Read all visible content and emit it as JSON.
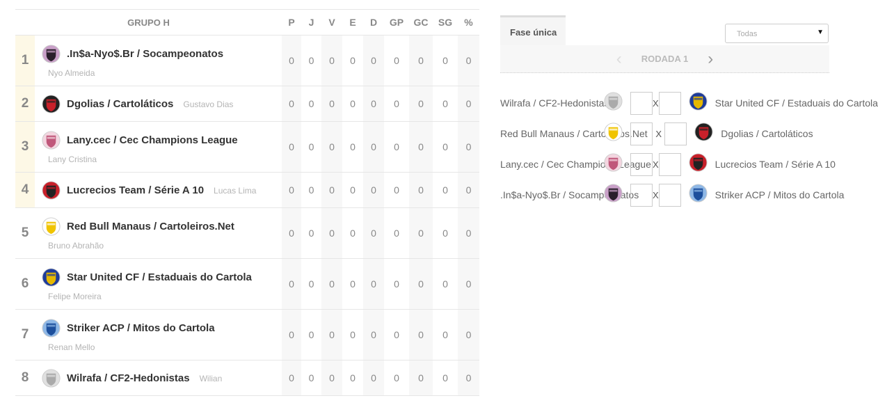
{
  "table": {
    "group_title": "GRUPO H",
    "columns": [
      "P",
      "J",
      "V",
      "E",
      "D",
      "GP",
      "GC",
      "SG",
      "%"
    ],
    "rows": [
      {
        "rank": "1",
        "team": ".In$a-Nyo$.Br / Socampeonatos",
        "owner": "Nyo Almeida",
        "two_line": true,
        "highlight": true,
        "crest": [
          "#2a1f2b",
          "#c9a0c8"
        ],
        "stats": [
          "0",
          "0",
          "0",
          "0",
          "0",
          "0",
          "0",
          "0",
          "0"
        ]
      },
      {
        "rank": "2",
        "team": "Dgolias / Cartoláticos",
        "owner": "Gustavo Dias",
        "two_line": false,
        "highlight": true,
        "crest": [
          "#c8202a",
          "#222222"
        ],
        "stats": [
          "0",
          "0",
          "0",
          "0",
          "0",
          "0",
          "0",
          "0",
          "0"
        ]
      },
      {
        "rank": "3",
        "team": "Lany.cec / Cec Champions League",
        "owner": "Lany Cristina",
        "two_line": true,
        "highlight": true,
        "crest": [
          "#c0577a",
          "#f3d6e0"
        ],
        "stats": [
          "0",
          "0",
          "0",
          "0",
          "0",
          "0",
          "0",
          "0",
          "0"
        ]
      },
      {
        "rank": "4",
        "team": "Lucrecios Team / Série A 10",
        "owner": "Lucas Lima",
        "two_line": false,
        "highlight": true,
        "crest": [
          "#222222",
          "#c8202a"
        ],
        "stats": [
          "0",
          "0",
          "0",
          "0",
          "0",
          "0",
          "0",
          "0",
          "0"
        ]
      },
      {
        "rank": "5",
        "team": "Red Bull Manaus / Cartoleiros.Net",
        "owner": "Bruno Abrahão",
        "two_line": true,
        "highlight": false,
        "crest": [
          "#f0c400",
          "#ffffff"
        ],
        "stats": [
          "0",
          "0",
          "0",
          "0",
          "0",
          "0",
          "0",
          "0",
          "0"
        ]
      },
      {
        "rank": "6",
        "team": "Star United CF / Estaduais do Cartola",
        "owner": "Felipe Moreira",
        "two_line": true,
        "highlight": false,
        "crest": [
          "#e6b800",
          "#1e3c9a"
        ],
        "stats": [
          "0",
          "0",
          "0",
          "0",
          "0",
          "0",
          "0",
          "0",
          "0"
        ]
      },
      {
        "rank": "7",
        "team": "Striker ACP / Mitos do Cartola",
        "owner": "Renan Mello",
        "two_line": true,
        "highlight": false,
        "crest": [
          "#1d4f9c",
          "#8fb8e6"
        ],
        "stats": [
          "0",
          "0",
          "0",
          "0",
          "0",
          "0",
          "0",
          "0",
          "0"
        ]
      },
      {
        "rank": "8",
        "team": "Wilrafa / CF2-Hedonistas",
        "owner": "Wilian",
        "two_line": false,
        "highlight": false,
        "crest": [
          "#aaaaaa",
          "#e0e0e0"
        ],
        "stats": [
          "0",
          "0",
          "0",
          "0",
          "0",
          "0",
          "0",
          "0",
          "0"
        ]
      }
    ]
  },
  "fixtures": {
    "tab_label": "Fase única",
    "filter_value": "Todas",
    "round_label": "RODADA 1",
    "separator": "X",
    "matches": [
      {
        "home": "Wilrafa / CF2-Hedonistas",
        "home_crest": [
          "#aaaaaa",
          "#e0e0e0"
        ],
        "away": "Star United CF / Estaduais do Cartola",
        "away_crest": [
          "#e6b800",
          "#1e3c9a"
        ]
      },
      {
        "home": "Red Bull Manaus / Cartoleiros.Net",
        "home_crest": [
          "#f0c400",
          "#ffffff"
        ],
        "away": "Dgolias / Cartoláticos",
        "away_crest": [
          "#c8202a",
          "#222222"
        ]
      },
      {
        "home": "Lany.cec / Cec Champions League",
        "home_crest": [
          "#c0577a",
          "#f3d6e0"
        ],
        "away": "Lucrecios Team / Série A 10",
        "away_crest": [
          "#222222",
          "#c8202a"
        ]
      },
      {
        "home": ".In$a-Nyo$.Br / Socampeonatos",
        "home_crest": [
          "#2a1f2b",
          "#c9a0c8"
        ],
        "away": "Striker ACP / Mitos do Cartola",
        "away_crest": [
          "#1d4f9c",
          "#8fb8e6"
        ]
      }
    ]
  }
}
